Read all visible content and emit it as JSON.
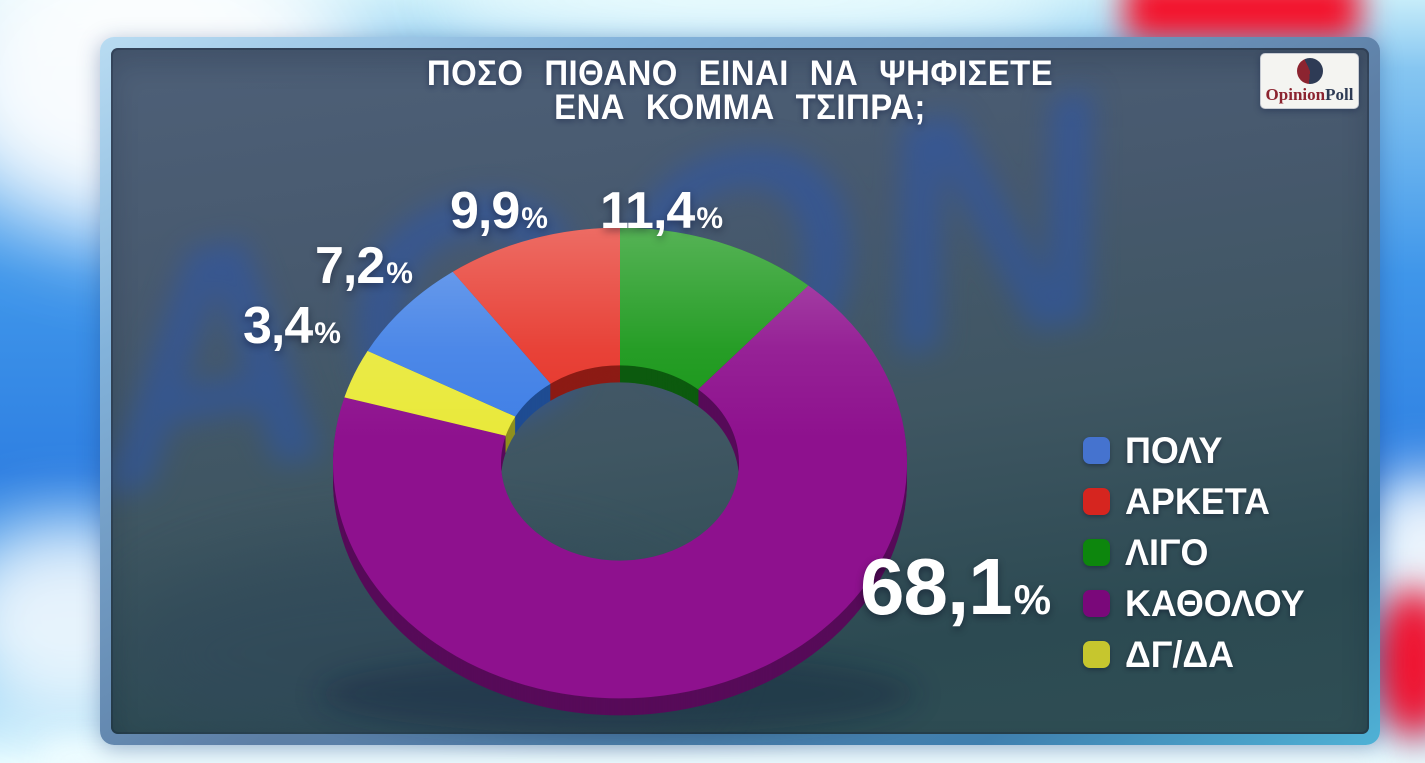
{
  "background": {
    "watermark": "AGON"
  },
  "header": {
    "title_line1": "ΠΟΣΟ ΠΙΘΑΝΟ ΕΙΝΑΙ ΝΑ ΨΗΦΙΣΕΤΕ",
    "title_line2": "ΕΝΑ ΚΟΜΜΑ ΤΣΙΠΡΑ;"
  },
  "logo": {
    "text_primary": "Opinion",
    "text_secondary": "Poll",
    "primary_color": "#8c2430",
    "secondary_color": "#2e3b55",
    "pie_colors": [
      "#8c2430",
      "#2e3b55"
    ]
  },
  "chart_data": {
    "type": "pie",
    "variant": "3d-donut",
    "title": "ΠΟΣΟ ΠΙΘΑΝΟ ΕΙΝΑΙ ΝΑ ΨΗΦΙΣΕΤΕ ΕΝΑ ΚΟΜΜΑ ΤΣΙΠΡΑ;",
    "start_angle_deg": 0,
    "clockwise": true,
    "percent_sign": "%",
    "slices": [
      {
        "label": "ΛΙΓΟ",
        "value": 11.4,
        "display": "11,4",
        "color": "#169616",
        "side_color": "#0c5a0e"
      },
      {
        "label": "ΚΑΘΟΛΟΥ",
        "value": 68.1,
        "display": "68,1",
        "color": "#8e118e",
        "side_color": "#570b59"
      },
      {
        "label": "ΔΓ/ΔΑ",
        "value": 3.4,
        "display": "3,4",
        "color": "#e9e93a",
        "side_color": "#90901e"
      },
      {
        "label": "ΠΟΛΥ",
        "value": 7.2,
        "display": "7,2",
        "color": "#3f7fe6",
        "side_color": "#1f4c92"
      },
      {
        "label": "ΑΡΚΕΤΑ",
        "value": 9.9,
        "display": "9,9",
        "color": "#e63429",
        "side_color": "#8c1b14"
      }
    ]
  },
  "legend": {
    "items": [
      {
        "label": "ΠΟΛΥ",
        "color": "#4573cf"
      },
      {
        "label": "ΑΡΚΕΤΑ",
        "color": "#d6251f"
      },
      {
        "label": "ΛΙΓΟ",
        "color": "#0d860d"
      },
      {
        "label": "ΚΑΘΟΛΟΥ",
        "color": "#7a087a"
      },
      {
        "label": "ΔΓ/ΔΑ",
        "color": "#c6c62e"
      }
    ]
  }
}
